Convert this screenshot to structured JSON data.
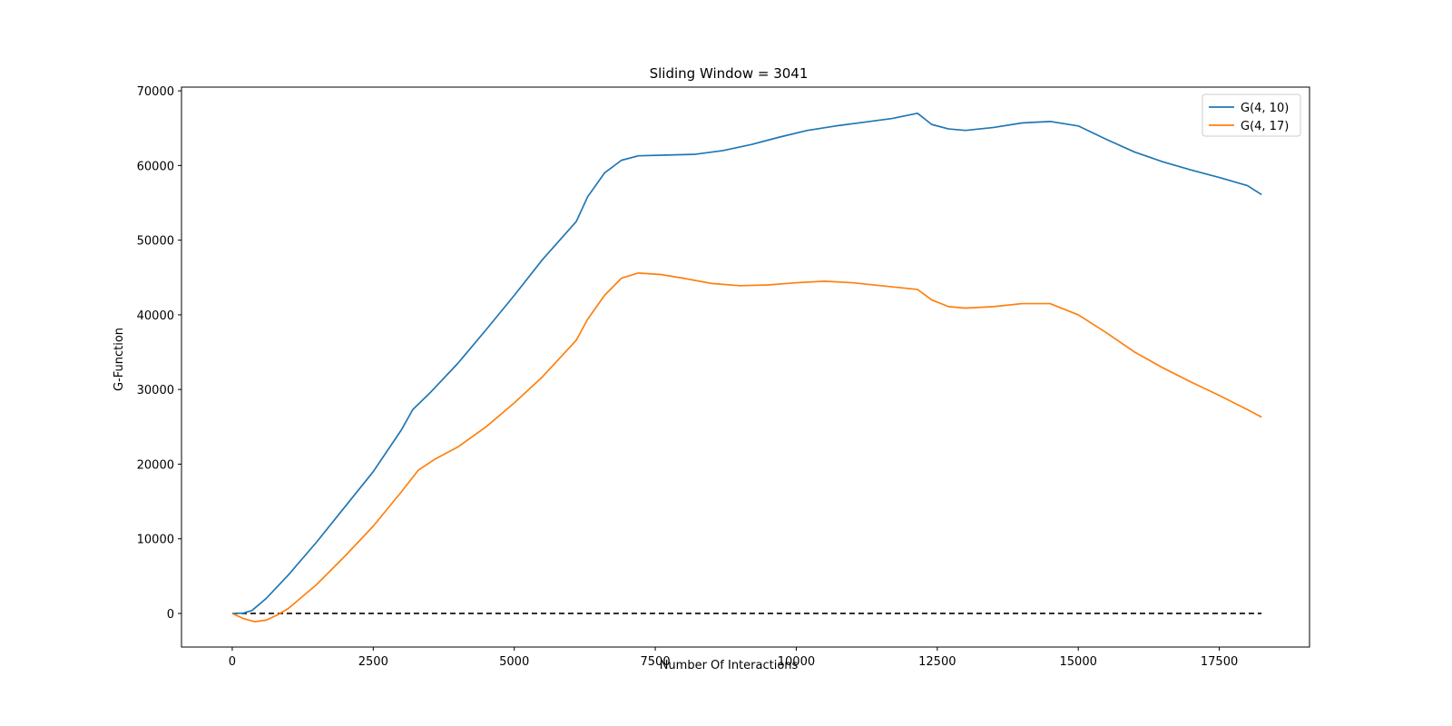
{
  "chart_data": {
    "type": "line",
    "title": "Sliding Window = 3041",
    "xlabel": "Number Of Interactions",
    "ylabel": "G-Function",
    "xlim": [
      -900,
      19100
    ],
    "ylim": [
      -4500,
      70500
    ],
    "x_ticks": [
      0,
      2500,
      5000,
      7500,
      10000,
      12500,
      15000,
      17500
    ],
    "y_ticks": [
      0,
      10000,
      20000,
      30000,
      40000,
      50000,
      60000,
      70000
    ],
    "grid": false,
    "legend_position": "top-right",
    "series": [
      {
        "name": "G(4, 10)",
        "color": "#1f77b4",
        "points": [
          [
            0,
            0
          ],
          [
            200,
            50
          ],
          [
            350,
            400
          ],
          [
            600,
            2000
          ],
          [
            1000,
            5200
          ],
          [
            1500,
            9600
          ],
          [
            2000,
            14300
          ],
          [
            2500,
            19000
          ],
          [
            3000,
            24600
          ],
          [
            3200,
            27300
          ],
          [
            3500,
            29500
          ],
          [
            4000,
            33500
          ],
          [
            4500,
            38000
          ],
          [
            5000,
            42600
          ],
          [
            5500,
            47400
          ],
          [
            6100,
            52500
          ],
          [
            6300,
            55800
          ],
          [
            6600,
            59000
          ],
          [
            6900,
            60700
          ],
          [
            7200,
            61300
          ],
          [
            7700,
            61400
          ],
          [
            8200,
            61500
          ],
          [
            8700,
            62000
          ],
          [
            9200,
            62800
          ],
          [
            9700,
            63800
          ],
          [
            10200,
            64700
          ],
          [
            10700,
            65300
          ],
          [
            11200,
            65800
          ],
          [
            11700,
            66300
          ],
          [
            12150,
            67000
          ],
          [
            12400,
            65500
          ],
          [
            12700,
            64900
          ],
          [
            13000,
            64700
          ],
          [
            13500,
            65100
          ],
          [
            14000,
            65700
          ],
          [
            14500,
            65900
          ],
          [
            15000,
            65300
          ],
          [
            15500,
            63500
          ],
          [
            16000,
            61800
          ],
          [
            16500,
            60500
          ],
          [
            17000,
            59400
          ],
          [
            17500,
            58400
          ],
          [
            18000,
            57300
          ],
          [
            18250,
            56100
          ]
        ]
      },
      {
        "name": "G(4, 17)",
        "color": "#ff7f0e",
        "points": [
          [
            0,
            0
          ],
          [
            200,
            -700
          ],
          [
            400,
            -1100
          ],
          [
            600,
            -900
          ],
          [
            800,
            -200
          ],
          [
            1000,
            700
          ],
          [
            1500,
            3900
          ],
          [
            2000,
            7700
          ],
          [
            2500,
            11700
          ],
          [
            3000,
            16300
          ],
          [
            3300,
            19200
          ],
          [
            3600,
            20700
          ],
          [
            4000,
            22300
          ],
          [
            4500,
            25000
          ],
          [
            5000,
            28200
          ],
          [
            5500,
            31700
          ],
          [
            6100,
            36600
          ],
          [
            6300,
            39400
          ],
          [
            6600,
            42600
          ],
          [
            6900,
            44900
          ],
          [
            7200,
            45600
          ],
          [
            7600,
            45400
          ],
          [
            8000,
            44900
          ],
          [
            8500,
            44200
          ],
          [
            9000,
            43900
          ],
          [
            9500,
            44000
          ],
          [
            10000,
            44300
          ],
          [
            10500,
            44500
          ],
          [
            11000,
            44300
          ],
          [
            11500,
            43900
          ],
          [
            12150,
            43400
          ],
          [
            12400,
            42000
          ],
          [
            12700,
            41100
          ],
          [
            13000,
            40900
          ],
          [
            13500,
            41100
          ],
          [
            14000,
            41500
          ],
          [
            14500,
            41500
          ],
          [
            15000,
            40000
          ],
          [
            15500,
            37600
          ],
          [
            16000,
            35000
          ],
          [
            16500,
            32900
          ],
          [
            17000,
            31000
          ],
          [
            17500,
            29200
          ],
          [
            18000,
            27300
          ],
          [
            18250,
            26300
          ]
        ]
      }
    ],
    "reference_line": {
      "y": 0,
      "x_range": [
        0,
        18250
      ],
      "style": "dashed",
      "color": "#000000"
    }
  }
}
